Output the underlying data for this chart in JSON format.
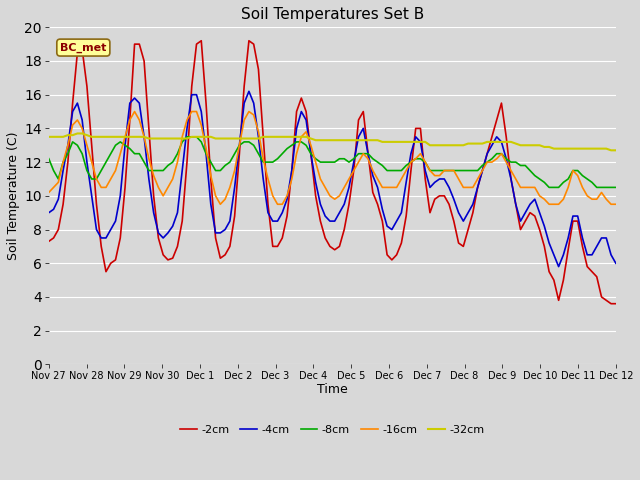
{
  "title": "Soil Temperatures Set B",
  "xlabel": "Time",
  "ylabel": "Soil Temperature (C)",
  "ylim": [
    0,
    20
  ],
  "yticks": [
    0,
    2,
    4,
    6,
    8,
    10,
    12,
    14,
    16,
    18,
    20
  ],
  "background_color": "#d8d8d8",
  "plot_bg_color": "#d8d8d8",
  "grid_color": "#ffffff",
  "annotation_text": "BC_met",
  "annotation_bg": "#ffff99",
  "annotation_border": "#8b6914",
  "series": {
    "-2cm": {
      "color": "#cc0000",
      "lw": 1.2
    },
    "-4cm": {
      "color": "#0000cc",
      "lw": 1.2
    },
    "-8cm": {
      "color": "#00aa00",
      "lw": 1.2
    },
    "-16cm": {
      "color": "#ff8800",
      "lw": 1.2
    },
    "-32cm": {
      "color": "#cccc00",
      "lw": 1.5
    }
  },
  "xtick_labels": [
    "Nov 27",
    "Nov 28",
    "Nov 29",
    "Nov 30",
    "Dec 1",
    "Dec 2",
    "Dec 3",
    "Dec 4",
    "Dec 5",
    "Dec 6",
    "Dec 7",
    "Dec 8",
    "Dec 9",
    "Dec 10",
    "Dec 11",
    "Dec 12"
  ],
  "n2cm": [
    7.3,
    7.5,
    8.0,
    9.5,
    12.0,
    15.5,
    18.5,
    18.7,
    16.5,
    13.0,
    9.5,
    7.0,
    5.5,
    6.0,
    6.2,
    7.5,
    10.5,
    14.5,
    19.0,
    19.0,
    18.0,
    14.0,
    10.0,
    7.5,
    6.5,
    6.2,
    6.3,
    7.0,
    8.5,
    12.0,
    16.5,
    19.0,
    19.2,
    15.5,
    11.0,
    7.5,
    6.3,
    6.5,
    7.0,
    8.8,
    12.5,
    16.5,
    19.2,
    19.0,
    17.5,
    13.5,
    9.5,
    7.0,
    7.0,
    7.5,
    8.8,
    11.5,
    15.0,
    15.8,
    15.0,
    12.5,
    10.0,
    8.5,
    7.5,
    7.0,
    6.8,
    7.0,
    8.0,
    9.5,
    11.5,
    14.5,
    15.0,
    12.5,
    10.2,
    9.5,
    8.5,
    6.5,
    6.2,
    6.5,
    7.2,
    8.8,
    11.5,
    14.0,
    14.0,
    11.0,
    9.0,
    9.8,
    10.0,
    10.0,
    9.5,
    8.5,
    7.2,
    7.0,
    8.0,
    9.0,
    10.5,
    11.5,
    12.5,
    13.5,
    14.5,
    15.5,
    13.5,
    11.0,
    9.5,
    8.0,
    8.5,
    9.0,
    8.8,
    8.0,
    7.0,
    5.5,
    5.0,
    3.8,
    5.0,
    6.8,
    8.5,
    8.5,
    7.0,
    5.8,
    5.5,
    5.2,
    4.0,
    3.8,
    3.6,
    3.6
  ],
  "n4cm": [
    9.0,
    9.2,
    9.8,
    11.5,
    13.0,
    15.0,
    15.5,
    14.5,
    12.0,
    10.0,
    8.0,
    7.5,
    7.5,
    8.0,
    8.5,
    10.0,
    13.0,
    15.5,
    15.8,
    15.5,
    13.5,
    11.0,
    9.0,
    7.8,
    7.5,
    7.8,
    8.2,
    9.0,
    11.5,
    14.0,
    16.0,
    16.0,
    15.0,
    12.5,
    9.5,
    7.8,
    7.8,
    8.0,
    8.5,
    10.5,
    13.0,
    15.5,
    16.2,
    15.5,
    13.5,
    11.0,
    9.0,
    8.5,
    8.5,
    9.0,
    9.8,
    11.5,
    14.0,
    15.0,
    14.5,
    12.5,
    10.8,
    9.5,
    8.8,
    8.5,
    8.5,
    9.0,
    9.5,
    10.5,
    12.0,
    13.5,
    14.0,
    12.5,
    11.2,
    10.5,
    9.2,
    8.2,
    8.0,
    8.5,
    9.0,
    10.8,
    12.5,
    13.5,
    13.2,
    11.5,
    10.5,
    10.8,
    11.0,
    11.0,
    10.5,
    9.8,
    9.0,
    8.5,
    9.0,
    9.5,
    10.5,
    11.5,
    12.5,
    13.0,
    13.5,
    13.2,
    12.2,
    11.0,
    9.5,
    8.5,
    9.0,
    9.5,
    9.8,
    9.0,
    8.2,
    7.2,
    6.5,
    5.8,
    6.5,
    7.5,
    8.8,
    8.8,
    7.5,
    6.5,
    6.5,
    7.0,
    7.5,
    7.5,
    6.5,
    6.0
  ],
  "n8cm": [
    12.2,
    11.5,
    11.0,
    12.0,
    12.5,
    13.2,
    13.0,
    12.5,
    11.5,
    11.0,
    11.0,
    11.5,
    12.0,
    12.5,
    13.0,
    13.2,
    13.0,
    12.8,
    12.5,
    12.5,
    12.0,
    11.5,
    11.5,
    11.5,
    11.5,
    11.8,
    12.0,
    12.5,
    13.2,
    13.5,
    13.5,
    13.5,
    13.2,
    12.5,
    12.0,
    11.5,
    11.5,
    11.8,
    12.0,
    12.5,
    13.0,
    13.2,
    13.2,
    13.0,
    12.5,
    12.0,
    12.0,
    12.0,
    12.2,
    12.5,
    12.8,
    13.0,
    13.2,
    13.2,
    13.0,
    12.5,
    12.2,
    12.0,
    12.0,
    12.0,
    12.0,
    12.2,
    12.2,
    12.0,
    12.2,
    12.5,
    12.5,
    12.5,
    12.2,
    12.0,
    11.8,
    11.5,
    11.5,
    11.5,
    11.5,
    11.8,
    12.0,
    12.2,
    12.2,
    12.0,
    11.5,
    11.5,
    11.5,
    11.5,
    11.5,
    11.5,
    11.5,
    11.5,
    11.5,
    11.5,
    11.5,
    11.8,
    12.0,
    12.2,
    12.5,
    12.5,
    12.2,
    12.0,
    12.0,
    11.8,
    11.8,
    11.5,
    11.2,
    11.0,
    10.8,
    10.5,
    10.5,
    10.5,
    10.8,
    11.0,
    11.5,
    11.5,
    11.2,
    11.0,
    10.8,
    10.5,
    10.5,
    10.5,
    10.5,
    10.5
  ],
  "n16cm": [
    10.2,
    10.5,
    10.8,
    12.0,
    13.0,
    14.2,
    14.5,
    14.0,
    13.0,
    12.0,
    11.0,
    10.5,
    10.5,
    11.0,
    11.5,
    12.5,
    13.5,
    14.5,
    15.0,
    14.5,
    13.5,
    12.2,
    11.2,
    10.5,
    10.0,
    10.5,
    11.0,
    12.0,
    13.5,
    14.5,
    15.0,
    15.0,
    14.2,
    12.8,
    11.2,
    10.0,
    9.5,
    9.8,
    10.5,
    11.5,
    13.0,
    14.5,
    15.0,
    14.8,
    13.8,
    12.2,
    11.0,
    10.0,
    9.5,
    9.5,
    10.0,
    11.0,
    12.5,
    13.5,
    13.8,
    13.0,
    12.0,
    11.0,
    10.5,
    10.0,
    9.8,
    10.0,
    10.5,
    11.0,
    11.5,
    12.0,
    12.5,
    12.2,
    11.5,
    11.0,
    10.5,
    10.5,
    10.5,
    10.5,
    11.0,
    11.5,
    12.0,
    12.2,
    12.5,
    12.0,
    11.5,
    11.2,
    11.2,
    11.5,
    11.5,
    11.5,
    11.0,
    10.5,
    10.5,
    10.5,
    11.0,
    11.5,
    12.0,
    12.0,
    12.2,
    12.5,
    12.0,
    11.5,
    11.0,
    10.5,
    10.5,
    10.5,
    10.5,
    10.0,
    9.8,
    9.5,
    9.5,
    9.5,
    9.8,
    10.5,
    11.5,
    11.2,
    10.5,
    10.0,
    9.8,
    9.8,
    10.2,
    9.8,
    9.5,
    9.5
  ],
  "n32cm": [
    13.5,
    13.5,
    13.5,
    13.5,
    13.6,
    13.6,
    13.7,
    13.7,
    13.6,
    13.5,
    13.5,
    13.5,
    13.5,
    13.5,
    13.5,
    13.5,
    13.5,
    13.5,
    13.5,
    13.5,
    13.5,
    13.4,
    13.4,
    13.4,
    13.4,
    13.4,
    13.4,
    13.4,
    13.4,
    13.4,
    13.5,
    13.5,
    13.5,
    13.5,
    13.5,
    13.4,
    13.4,
    13.4,
    13.4,
    13.4,
    13.4,
    13.4,
    13.4,
    13.4,
    13.4,
    13.5,
    13.5,
    13.5,
    13.5,
    13.5,
    13.5,
    13.5,
    13.5,
    13.5,
    13.5,
    13.4,
    13.3,
    13.3,
    13.3,
    13.3,
    13.3,
    13.3,
    13.3,
    13.3,
    13.3,
    13.3,
    13.3,
    13.3,
    13.3,
    13.3,
    13.2,
    13.2,
    13.2,
    13.2,
    13.2,
    13.2,
    13.2,
    13.2,
    13.2,
    13.2,
    13.0,
    13.0,
    13.0,
    13.0,
    13.0,
    13.0,
    13.0,
    13.0,
    13.1,
    13.1,
    13.1,
    13.1,
    13.2,
    13.2,
    13.2,
    13.2,
    13.2,
    13.2,
    13.1,
    13.0,
    13.0,
    13.0,
    13.0,
    13.0,
    12.9,
    12.9,
    12.8,
    12.8,
    12.8,
    12.8,
    12.8,
    12.8,
    12.8,
    12.8,
    12.8,
    12.8,
    12.8,
    12.8,
    12.7,
    12.7
  ]
}
